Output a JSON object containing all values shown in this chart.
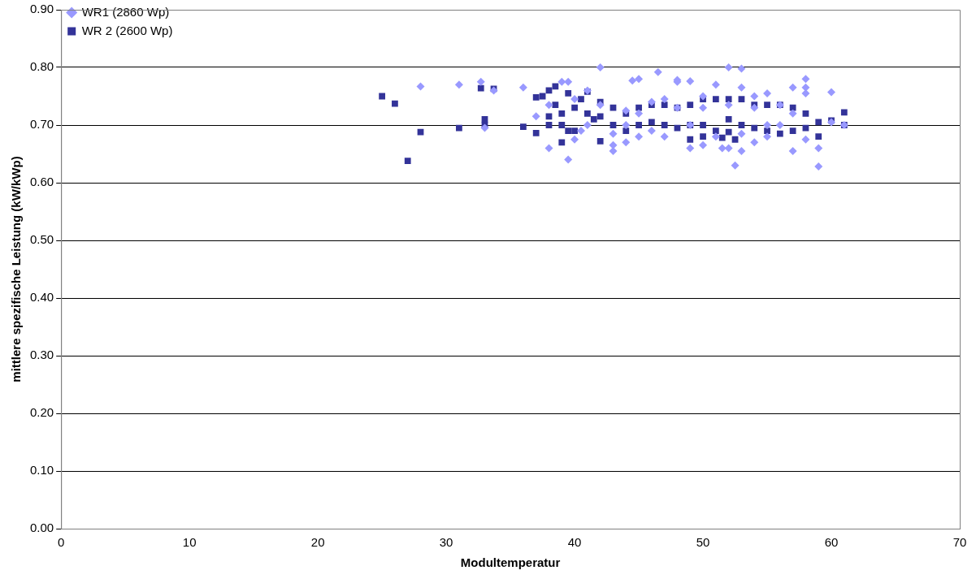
{
  "chart_data": {
    "type": "scatter",
    "xlabel": "Modultemperatur",
    "ylabel": "mittlere spezifische Leistung (kW/kWp)",
    "xlim": [
      0,
      70
    ],
    "xticks": [
      0,
      10,
      20,
      30,
      40,
      50,
      60,
      70
    ],
    "ylim": [
      0,
      0.9
    ],
    "yticks": [
      {
        "value": 0,
        "label": "0.00"
      },
      {
        "value": 0.1,
        "label": "0.10"
      },
      {
        "value": 0.2,
        "label": "0.20"
      },
      {
        "value": 0.3,
        "label": "0.30"
      },
      {
        "value": 0.4,
        "label": "0.40"
      },
      {
        "value": 0.5,
        "label": "0.50"
      },
      {
        "value": 0.6,
        "label": "0.60"
      },
      {
        "value": 0.7,
        "label": "0.70"
      },
      {
        "value": 0.8,
        "label": "0.80"
      },
      {
        "value": 0.9,
        "label": "0.90"
      }
    ],
    "grid": "y",
    "legend": "top left",
    "series": [
      {
        "name": "WR1 (2860 Wp)",
        "color": "#9999ff",
        "marker": "diamond",
        "x": [
          28,
          31,
          32.7,
          33,
          33.7,
          36,
          38,
          39,
          39.5,
          39.5,
          40,
          41,
          42,
          43,
          43,
          44,
          44.5,
          45,
          45,
          46.5,
          47,
          48,
          48,
          49,
          49,
          50,
          51,
          51.5,
          52,
          52,
          52.5,
          53,
          53,
          53,
          54,
          55,
          55,
          57,
          57,
          58,
          58,
          58,
          58,
          59,
          59,
          60,
          56,
          37,
          38,
          40,
          42,
          44,
          46,
          48,
          50,
          52,
          54,
          56,
          41,
          43,
          45,
          47,
          49,
          51,
          53,
          55,
          57,
          60,
          61,
          40.5,
          44,
          46,
          50,
          54
        ],
        "values": [
          0.767,
          0.77,
          0.775,
          0.695,
          0.76,
          0.765,
          0.66,
          0.775,
          0.64,
          0.775,
          0.675,
          0.76,
          0.8,
          0.655,
          0.665,
          0.67,
          0.777,
          0.78,
          0.68,
          0.792,
          0.745,
          0.778,
          0.775,
          0.776,
          0.66,
          0.75,
          0.77,
          0.66,
          0.8,
          0.66,
          0.63,
          0.798,
          0.765,
          0.655,
          0.75,
          0.755,
          0.68,
          0.765,
          0.655,
          0.78,
          0.765,
          0.755,
          0.675,
          0.66,
          0.628,
          0.757,
          0.735,
          0.715,
          0.735,
          0.745,
          0.735,
          0.725,
          0.74,
          0.73,
          0.73,
          0.735,
          0.73,
          0.7,
          0.7,
          0.685,
          0.72,
          0.68,
          0.7,
          0.68,
          0.685,
          0.7,
          0.72,
          0.705,
          0.7,
          0.69,
          0.7,
          0.69,
          0.665,
          0.67
        ]
      },
      {
        "name": "WR 2 (2600 Wp)",
        "color": "#333399",
        "marker": "square",
        "x": [
          25,
          26,
          27,
          28,
          31,
          32.7,
          33,
          33,
          33.7,
          36,
          37,
          37,
          37.5,
          38,
          38,
          38,
          38.5,
          38.5,
          39,
          39,
          39,
          39.5,
          39.5,
          40,
          40,
          40.5,
          41,
          41,
          41.5,
          42,
          42,
          42,
          43,
          43,
          44,
          44,
          45,
          45,
          46,
          46,
          47,
          47,
          48,
          48,
          49,
          49,
          49,
          50,
          50,
          50,
          51,
          51,
          51.5,
          52,
          52,
          52,
          52.5,
          53,
          53,
          54,
          54,
          55,
          55,
          56,
          56,
          57,
          57,
          58,
          58,
          59,
          59,
          60,
          61,
          61
        ],
        "values": [
          0.75,
          0.737,
          0.638,
          0.688,
          0.695,
          0.764,
          0.71,
          0.7,
          0.763,
          0.697,
          0.686,
          0.748,
          0.75,
          0.76,
          0.7,
          0.715,
          0.767,
          0.735,
          0.67,
          0.72,
          0.7,
          0.755,
          0.69,
          0.69,
          0.73,
          0.745,
          0.758,
          0.72,
          0.71,
          0.672,
          0.74,
          0.715,
          0.73,
          0.7,
          0.72,
          0.69,
          0.73,
          0.7,
          0.735,
          0.705,
          0.735,
          0.7,
          0.73,
          0.695,
          0.735,
          0.675,
          0.7,
          0.745,
          0.7,
          0.68,
          0.745,
          0.69,
          0.678,
          0.745,
          0.71,
          0.688,
          0.675,
          0.745,
          0.7,
          0.735,
          0.695,
          0.735,
          0.69,
          0.735,
          0.685,
          0.73,
          0.69,
          0.72,
          0.695,
          0.705,
          0.68,
          0.708,
          0.722,
          0.7
        ]
      }
    ]
  }
}
